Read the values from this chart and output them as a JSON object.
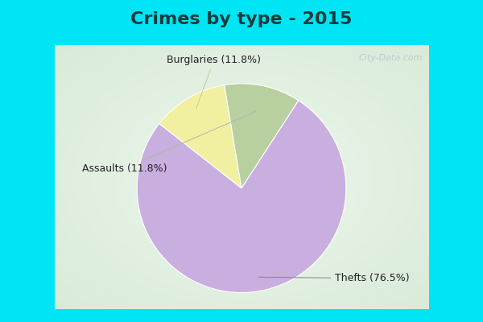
{
  "title": "Crimes by type - 2015",
  "slices": [
    {
      "label": "Thefts (76.5%)",
      "value": 76.5,
      "color": "#c9aee0"
    },
    {
      "label": "Burglaries (11.8%)",
      "value": 11.8,
      "color": "#f0f0a0"
    },
    {
      "label": "Assaults (11.8%)",
      "value": 11.8,
      "color": "#b8cfa0"
    }
  ],
  "bg_cyan": "#00e5f5",
  "bg_main_center": "#e8f5e8",
  "bg_main_edge": "#c8e8d8",
  "title_fontsize": 16,
  "label_fontsize": 9,
  "startangle": 57,
  "watermark": "City-Data.com"
}
